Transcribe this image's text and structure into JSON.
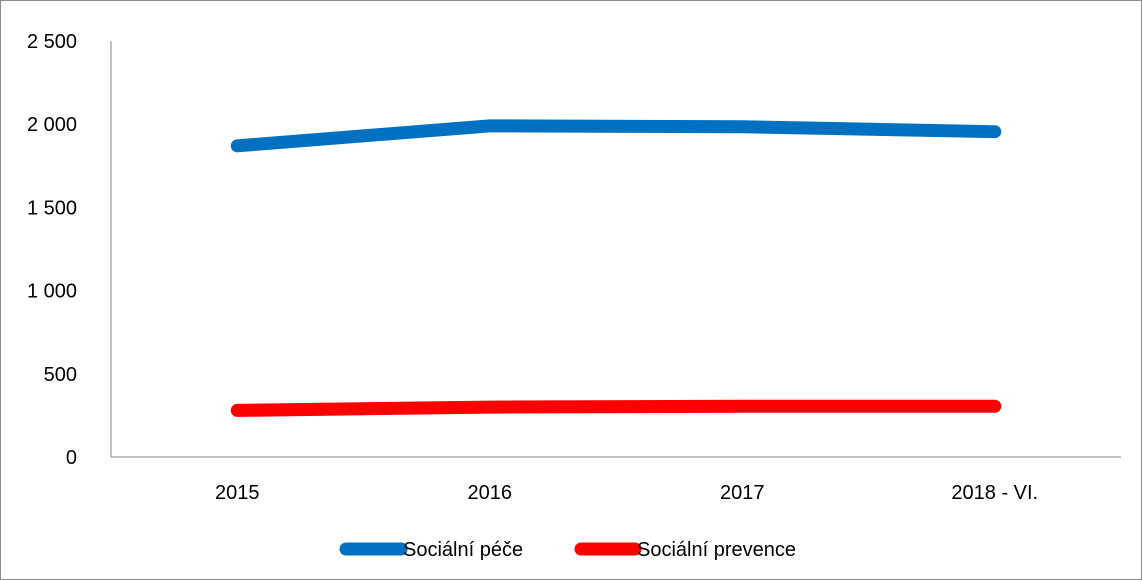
{
  "chart_data": {
    "type": "line",
    "categories": [
      "2015",
      "2016",
      "2017",
      "2018 - VI."
    ],
    "y_ticks": [
      "0",
      "500",
      "1 000",
      "1 500",
      "2 000",
      "2 500"
    ],
    "ylim": [
      0,
      2500
    ],
    "grid": false,
    "legend_position": "bottom",
    "series": [
      {
        "name": "Sociální péče",
        "color": "#0070c0",
        "values": [
          1870,
          1990,
          1985,
          1955
        ]
      },
      {
        "name": "Sociální prevence",
        "color": "#ff0000",
        "values": [
          280,
          300,
          305,
          305
        ]
      }
    ]
  }
}
